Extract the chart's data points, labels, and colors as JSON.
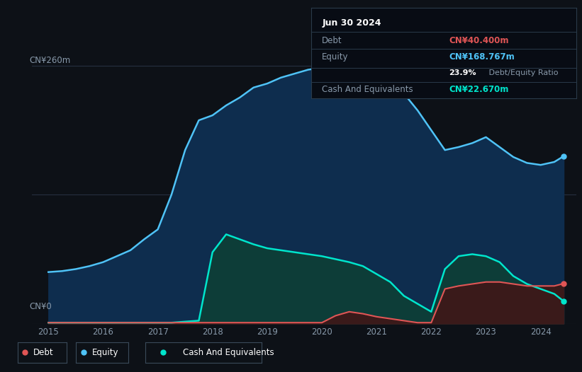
{
  "background_color": "#0d1117",
  "plot_bg_color": "#0d1117",
  "grid_color": "#263040",
  "title_box": {
    "date": "Jun 30 2024",
    "debt_label": "Debt",
    "debt_value": "CN¥40.400m",
    "debt_color": "#e05555",
    "equity_label": "Equity",
    "equity_value": "CN¥168.767m",
    "equity_color": "#4fc3f7",
    "ratio_bold": "23.9%",
    "ratio_rest": " Debt/Equity Ratio",
    "cash_label": "Cash And Equivalents",
    "cash_value": "CN¥22.670m",
    "cash_color": "#00e5cc"
  },
  "years": [
    2015.0,
    2015.25,
    2015.5,
    2015.75,
    2016.0,
    2016.25,
    2016.5,
    2016.75,
    2017.0,
    2017.25,
    2017.5,
    2017.75,
    2018.0,
    2018.25,
    2018.5,
    2018.75,
    2019.0,
    2019.25,
    2019.5,
    2019.75,
    2020.0,
    2020.25,
    2020.5,
    2020.75,
    2021.0,
    2021.25,
    2021.5,
    2021.75,
    2022.0,
    2022.25,
    2022.5,
    2022.75,
    2023.0,
    2023.25,
    2023.5,
    2023.75,
    2024.0,
    2024.25,
    2024.42
  ],
  "equity": [
    52,
    53,
    55,
    58,
    62,
    68,
    74,
    85,
    95,
    130,
    175,
    205,
    210,
    220,
    228,
    238,
    242,
    248,
    252,
    256,
    258,
    255,
    252,
    248,
    244,
    238,
    232,
    215,
    195,
    175,
    178,
    182,
    188,
    178,
    168,
    162,
    160,
    163,
    168.767
  ],
  "cash": [
    1,
    1,
    1,
    1,
    1,
    1,
    1,
    1,
    1,
    1,
    2,
    3,
    72,
    90,
    85,
    80,
    76,
    74,
    72,
    70,
    68,
    65,
    62,
    58,
    50,
    42,
    28,
    20,
    12,
    55,
    68,
    70,
    68,
    62,
    48,
    40,
    35,
    30,
    22.67
  ],
  "debt": [
    1,
    1,
    1,
    1,
    1,
    1,
    1,
    1,
    1,
    1,
    1,
    1,
    1,
    1,
    1,
    1,
    1,
    1,
    1,
    1,
    1,
    8,
    12,
    10,
    7,
    5,
    3,
    1,
    1,
    35,
    38,
    40,
    42,
    42,
    40,
    38,
    38,
    38,
    40.4
  ],
  "ylim": [
    0,
    270
  ],
  "xmin": 2014.7,
  "xmax": 2024.65,
  "equity_fill_color": "#0e2d4e",
  "equity_line_color": "#4fc3f7",
  "cash_fill_color": "#0d3d38",
  "cash_line_color": "#00e5cc",
  "debt_line_color": "#e05555",
  "debt_fill_color": "#3a1a1a",
  "legend": [
    {
      "label": "Debt",
      "color": "#e05555"
    },
    {
      "label": "Equity",
      "color": "#4fc3f7"
    },
    {
      "label": "Cash And Equivalents",
      "color": "#00e5cc"
    }
  ]
}
